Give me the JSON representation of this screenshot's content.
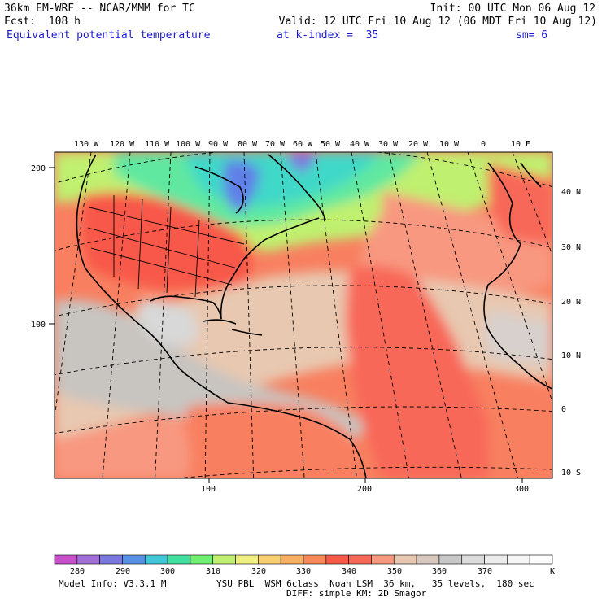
{
  "header": {
    "model_line": "36km EM-WRF -- NCAR/MMM for TC",
    "init_line": "Init: 00 UTC Mon 06 Aug 12",
    "fcst_line": "Fcst:  108 h",
    "valid_line": "Valid: 12 UTC Fri 10 Aug 12 (06 MDT Fri 10 Aug 12)",
    "field_name": "Equivalent potential temperature",
    "level": "at k-index =  35",
    "smoothing": "sm= 6"
  },
  "map": {
    "lon_labels": [
      "130 W",
      "120 W",
      "110 W",
      "100 W",
      "90 W",
      "80 W",
      "70 W",
      "60 W",
      "50 W",
      "40 W",
      "30 W",
      "20 W",
      "10 W",
      "0",
      "10 E"
    ],
    "lat_labels": [
      "40 N",
      "30 N",
      "20 N",
      "10 N",
      "0",
      "10 S"
    ],
    "grid_y_labels": [
      "200",
      "100"
    ],
    "grid_x_labels": [
      "100",
      "200",
      "300"
    ]
  },
  "colorbar": {
    "tick_labels": [
      "280",
      "290",
      "300",
      "310",
      "320",
      "330",
      "340",
      "350",
      "360",
      "370"
    ],
    "unit": "K",
    "colors": [
      "#c850c8",
      "#a070d8",
      "#7a78e0",
      "#5890e8",
      "#40c8d8",
      "#40e0a0",
      "#70f070",
      "#c0f070",
      "#f0f080",
      "#f8d070",
      "#f8b060",
      "#f88858",
      "#f85848",
      "#f86858",
      "#f89880",
      "#e8c8b0",
      "#d8c8c0",
      "#c8c8c8",
      "#dcdcdc",
      "#ececec",
      "#f6f6f6",
      "#ffffff"
    ]
  },
  "footer": {
    "model_info": "Model Info: V3.3.1 M",
    "physics": "YSU PBL  WSM 6class  Noah LSM  36 km,   35 levels,  180 sec",
    "diffusion": "DIFF: simple KM: 2D Smagor"
  }
}
